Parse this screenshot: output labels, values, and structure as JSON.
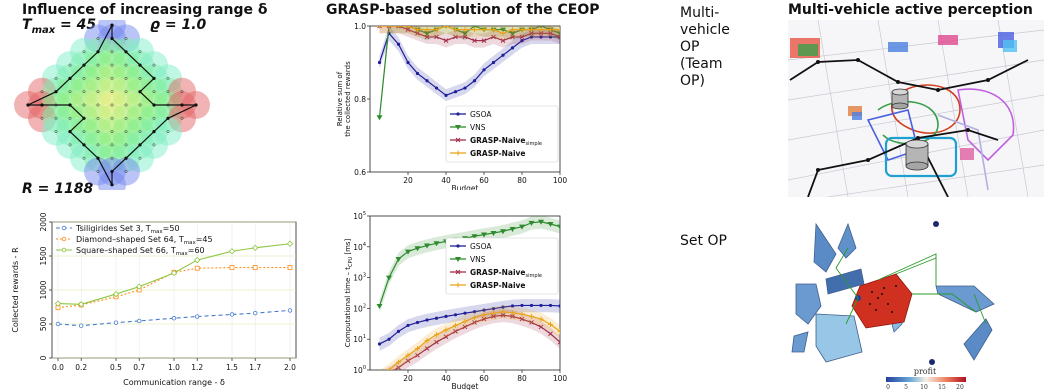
{
  "slide": {
    "left_title": "Influence of increasing range δ",
    "tmax_label": "T",
    "tmax_sub": "max",
    "tmax_value": " = 45",
    "rho_label": "ϱ = 1.0",
    "r_label": "R = 1188",
    "mid_title": "GRASP-based solution of the CEOP",
    "team_op_label": "Multi-\nvehicle\nOP\n(Team\nOP)",
    "right_title": "Multi-vehicle active perception",
    "set_op_label": "Set OP",
    "profit_label": "profit"
  },
  "colors": {
    "gsoa": "#1f1f9a",
    "vns": "#2e8b2e",
    "naive_simple": "#a0304a",
    "naive": "#e8a317",
    "tsiligirides": "#4a7bd0",
    "diamond": "#ff8c1a",
    "square": "#8cc63f"
  },
  "chart_data": [
    {
      "type": "line",
      "xlabel": "Budget",
      "ylabel": "Relative sum of the collected rewards",
      "ylabel_line1": "Relative sum of",
      "ylabel_line2": "the collected rewards",
      "ylim": [
        0.6,
        1.0
      ],
      "xlim": [
        0,
        100
      ],
      "xticks": [
        "20",
        "40",
        "60",
        "80",
        "100"
      ],
      "yticks": [
        "0.6",
        "0.8",
        "1.0"
      ],
      "legend": "lower-right",
      "series": [
        {
          "name": "GSOA",
          "x": [
            5,
            10,
            15,
            20,
            25,
            30,
            35,
            40,
            45,
            50,
            55,
            60,
            65,
            70,
            75,
            80,
            85,
            90,
            95,
            100
          ],
          "y": [
            0.9,
            0.98,
            0.95,
            0.9,
            0.87,
            0.85,
            0.83,
            0.81,
            0.82,
            0.83,
            0.85,
            0.88,
            0.9,
            0.92,
            0.94,
            0.96,
            0.97,
            0.97,
            0.97,
            0.97
          ]
        },
        {
          "name": "VNS",
          "x": [
            5,
            10,
            15,
            20,
            25,
            30,
            35,
            40,
            45,
            50,
            55,
            60,
            65,
            70,
            75,
            80,
            85,
            90,
            95,
            100
          ],
          "y": [
            0.75,
            1.0,
            1.0,
            1.0,
            0.99,
            0.98,
            0.99,
            1.0,
            0.99,
            0.98,
            1.0,
            0.99,
            0.99,
            0.99,
            0.98,
            0.99,
            0.99,
            1.0,
            0.99,
            0.98
          ]
        },
        {
          "name": "GRASP-Naive",
          "name_sub": "simple",
          "x": [
            5,
            10,
            15,
            20,
            25,
            30,
            35,
            40,
            45,
            50,
            55,
            60,
            65,
            70,
            75,
            80,
            85,
            90,
            95,
            100
          ],
          "y": [
            1.0,
            1.0,
            1.0,
            0.99,
            0.98,
            0.97,
            0.97,
            0.96,
            0.97,
            0.97,
            0.96,
            0.96,
            0.97,
            0.96,
            0.97,
            0.97,
            0.98,
            0.98,
            0.98,
            0.97
          ]
        },
        {
          "name": "GRASP-Naive",
          "x": [
            5,
            10,
            15,
            20,
            25,
            30,
            35,
            40,
            45,
            50,
            55,
            60,
            65,
            70,
            75,
            80,
            85,
            90,
            95,
            100
          ],
          "y": [
            1.0,
            1.0,
            1.0,
            1.0,
            0.99,
            0.99,
            0.99,
            1.0,
            0.99,
            0.99,
            0.99,
            0.99,
            0.99,
            0.98,
            0.99,
            0.99,
            0.99,
            0.99,
            0.99,
            0.99
          ]
        }
      ]
    },
    {
      "type": "line",
      "xlabel": "Budget",
      "ylabel": "Computational time – t",
      "ylabel_sub": "CPU",
      "ylabel_unit": " [ms]",
      "yscale": "log",
      "ylim": [
        1,
        100000
      ],
      "xlim": [
        0,
        100
      ],
      "xticks": [
        "20",
        "40",
        "60",
        "80",
        "100"
      ],
      "yticks_exp": [
        "0",
        "1",
        "2",
        "3",
        "4",
        "5"
      ],
      "legend": "center-right",
      "series": [
        {
          "name": "GSOA",
          "x": [
            5,
            10,
            15,
            20,
            25,
            30,
            35,
            40,
            45,
            50,
            55,
            60,
            65,
            70,
            75,
            80,
            85,
            90,
            95,
            100
          ],
          "y": [
            7,
            10,
            18,
            28,
            35,
            42,
            48,
            55,
            62,
            70,
            78,
            88,
            98,
            110,
            120,
            125,
            125,
            125,
            125,
            120
          ]
        },
        {
          "name": "VNS",
          "x": [
            5,
            10,
            15,
            20,
            25,
            30,
            35,
            40,
            45,
            50,
            55,
            60,
            65,
            70,
            75,
            80,
            85,
            90,
            95,
            100
          ],
          "y": [
            120,
            1000,
            4000,
            7000,
            9000,
            11000,
            13000,
            15000,
            17000,
            19000,
            22000,
            25000,
            28000,
            32000,
            38000,
            45000,
            60000,
            65000,
            55000,
            45000
          ]
        },
        {
          "name": "GRASP-Naive",
          "name_sub": "simple",
          "x": [
            5,
            10,
            15,
            20,
            25,
            30,
            35,
            40,
            45,
            50,
            55,
            60,
            65,
            70,
            75,
            80,
            85,
            90,
            95,
            100
          ],
          "y": [
            0.5,
            0.8,
            1.2,
            2,
            3,
            5,
            8,
            12,
            18,
            25,
            35,
            45,
            55,
            60,
            55,
            45,
            35,
            25,
            15,
            8
          ]
        },
        {
          "name": "GRASP-Naive",
          "x": [
            5,
            10,
            15,
            20,
            25,
            30,
            35,
            40,
            45,
            50,
            55,
            60,
            65,
            70,
            75,
            80,
            85,
            90,
            95,
            100
          ],
          "y": [
            0.6,
            1.0,
            1.8,
            3,
            5,
            9,
            14,
            20,
            28,
            38,
            50,
            62,
            70,
            78,
            72,
            65,
            55,
            45,
            30,
            18
          ]
        }
      ]
    },
    {
      "type": "line",
      "xlabel": "Communication range - δ",
      "ylabel": "Collected rewards - R",
      "ylim": [
        0,
        2000
      ],
      "x_categories": [
        "0.0",
        "0.2",
        "0.5",
        "0.7",
        "1.0",
        "1.2",
        "1.5",
        "1.7",
        "2.0"
      ],
      "yticks": [
        "0",
        "500",
        "1000",
        "1500",
        "2000"
      ],
      "legend": "top-left",
      "series": [
        {
          "name": "Tsiligirides Set 3, T",
          "name_sub": "max",
          "name_tail": "=50",
          "values": [
            500,
            475,
            520,
            545,
            585,
            610,
            640,
            660,
            700
          ]
        },
        {
          "name": "Diamond–shaped Set 64, T",
          "name_sub": "max",
          "name_tail": "=45",
          "values": [
            740,
            780,
            900,
            1000,
            1260,
            1320,
            1330,
            1330,
            1330
          ]
        },
        {
          "name": "Square–shaped Set 66, T",
          "name_sub": "max",
          "name_tail": "=60",
          "values": [
            800,
            790,
            940,
            1050,
            1250,
            1440,
            1570,
            1620,
            1680
          ]
        }
      ]
    }
  ],
  "colorbar": {
    "ticks": [
      "0",
      "5",
      "10",
      "15",
      "20"
    ]
  }
}
